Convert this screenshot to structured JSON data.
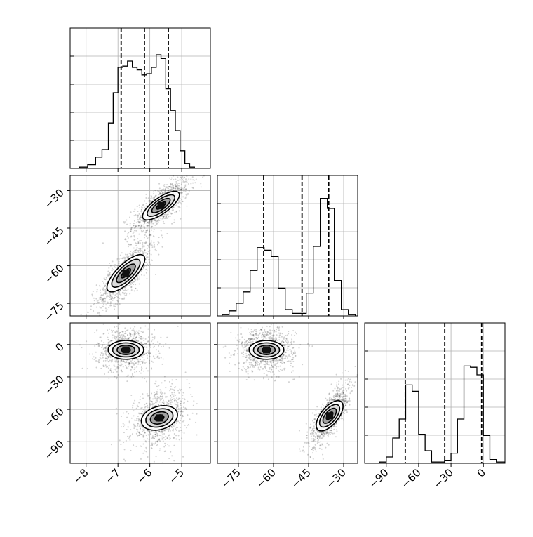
{
  "chart_data": [
    {
      "type": "histogram",
      "panel": "diag-p1",
      "xlim": [
        -8.5,
        -4.1
      ],
      "ylim": [
        0,
        1
      ],
      "bin_edges": [
        -8.2,
        -7.95,
        -7.7,
        -7.5,
        -7.3,
        -7.15,
        -7.0,
        -6.85,
        -6.7,
        -6.55,
        -6.4,
        -6.25,
        -6.1,
        -5.95,
        -5.8,
        -5.65,
        -5.5,
        -5.35,
        -5.2,
        -5.05,
        -4.9,
        -4.75,
        -4.6,
        -4.4
      ],
      "heights": [
        0.01,
        0.03,
        0.09,
        0.15,
        0.36,
        0.6,
        0.8,
        0.81,
        0.85,
        0.8,
        0.78,
        0.74,
        0.75,
        0.8,
        0.9,
        0.87,
        0.63,
        0.46,
        0.3,
        0.14,
        0.04,
        0.01,
        0.0
      ],
      "quantiles": [
        -6.9,
        -6.17,
        -5.42
      ]
    },
    {
      "type": "histogram",
      "panel": "diag-p2",
      "xlim": [
        -84,
        -24
      ],
      "ylim": [
        0,
        1
      ],
      "bin_edges": [
        -82,
        -79,
        -76,
        -73,
        -70,
        -67,
        -64,
        -61,
        -58,
        -55,
        -52,
        -49,
        -46,
        -43,
        -40,
        -37,
        -34,
        -31,
        -28,
        -25
      ],
      "heights": [
        0.01,
        0.04,
        0.1,
        0.19,
        0.36,
        0.54,
        0.52,
        0.47,
        0.22,
        0.05,
        0.02,
        0.02,
        0.18,
        0.55,
        0.93,
        0.85,
        0.28,
        0.05,
        0.01
      ],
      "quantiles": [
        -64.2,
        -47.8,
        -36.4
      ]
    },
    {
      "type": "histogram",
      "panel": "diag-p3",
      "xlim": [
        -110,
        20
      ],
      "ylim": [
        0,
        1
      ],
      "bin_edges": [
        -96,
        -90,
        -84,
        -78,
        -72,
        -66,
        -60,
        -54,
        -48,
        -42,
        -36,
        -30,
        -24,
        -18,
        -12,
        -6,
        0,
        6,
        12,
        20
      ],
      "heights": [
        0.01,
        0.05,
        0.2,
        0.35,
        0.62,
        0.57,
        0.23,
        0.1,
        0.01,
        0.01,
        0.02,
        0.08,
        0.35,
        0.77,
        0.76,
        0.7,
        0.22,
        0.03,
        0.01
      ],
      "quantiles": [
        -72.4,
        -35.8,
        -1.6
      ]
    },
    {
      "type": "scatter-density",
      "panel": "p1-vs-p2",
      "xlim": [
        -8.5,
        -4.1
      ],
      "ylim": [
        -80,
        -24
      ],
      "clusters": [
        {
          "center": [
            -5.65,
            -36
          ],
          "spread": [
            0.45,
            5.5
          ],
          "corr": 0.75
        },
        {
          "center": [
            -6.75,
            -63
          ],
          "spread": [
            0.45,
            7.0
          ],
          "corr": 0.8
        }
      ]
    },
    {
      "type": "scatter-density",
      "panel": "p1-vs-p3",
      "xlim": [
        -8.5,
        -4.1
      ],
      "ylim": [
        -110,
        20
      ],
      "clusters": [
        {
          "center": [
            -6.75,
            -5
          ],
          "spread": [
            0.45,
            10.0
          ],
          "corr": 0.0
        },
        {
          "center": [
            -5.7,
            -68
          ],
          "spread": [
            0.45,
            13.0
          ],
          "corr": 0.3
        }
      ]
    },
    {
      "type": "scatter-density",
      "panel": "p2-vs-p3",
      "xlim": [
        -84,
        -24
      ],
      "ylim": [
        -110,
        20
      ],
      "clusters": [
        {
          "center": [
            -63,
            -5
          ],
          "spread": [
            6.0,
            10.0
          ],
          "corr": 0.0
        },
        {
          "center": [
            -36,
            -66
          ],
          "spread": [
            4.0,
            14.0
          ],
          "corr": 0.75
        }
      ]
    }
  ],
  "axes": {
    "x_left": {
      "ticks": [
        -8,
        -7,
        -6,
        -5
      ],
      "labels": [
        "−8",
        "−7",
        "−6",
        "−5"
      ]
    },
    "x_mid": {
      "ticks": [
        -75,
        -60,
        -45,
        -30
      ],
      "labels": [
        "−75",
        "−60",
        "−45",
        "−30"
      ]
    },
    "x_right": {
      "ticks": [
        -90,
        -60,
        -30,
        0
      ],
      "labels": [
        "−90",
        "−60",
        "−30",
        "0"
      ]
    },
    "y_mid": {
      "ticks": [
        -30,
        -45,
        -60,
        -75
      ],
      "labels": [
        "−30",
        "−45",
        "−60",
        "−75"
      ]
    },
    "y_bottom": {
      "ticks": [
        0,
        -30,
        -60,
        -90
      ],
      "labels": [
        "0",
        "−30",
        "−60",
        "−90"
      ]
    }
  },
  "grid": true,
  "colors": {
    "line": "#000000",
    "grid": "#b0b0b0",
    "point": "#000000"
  }
}
